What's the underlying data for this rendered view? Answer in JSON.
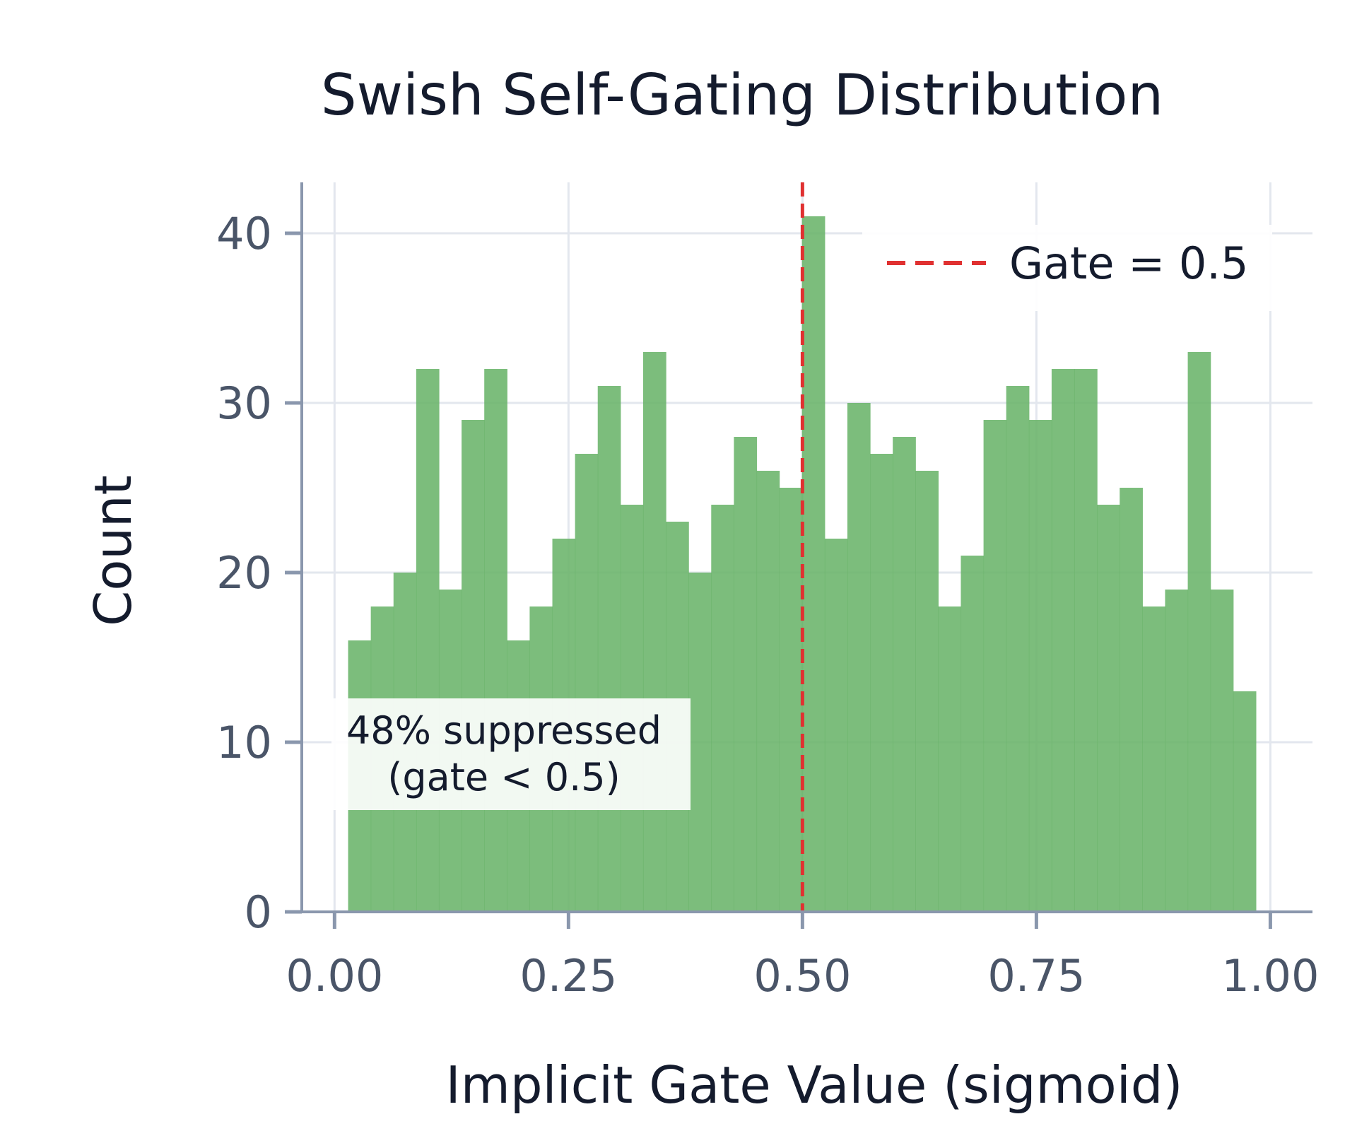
{
  "chart_data": {
    "type": "bar",
    "title": "Swish Self-Gating Distribution",
    "xlabel": "Implicit Gate Value (sigmoid)",
    "ylabel": "Count",
    "xlim": [
      -0.035,
      1.045
    ],
    "ylim": [
      0,
      43
    ],
    "xticks": [
      {
        "value": 0.0,
        "label": "0.00"
      },
      {
        "value": 0.25,
        "label": "0.25"
      },
      {
        "value": 0.5,
        "label": "0.50"
      },
      {
        "value": 0.75,
        "label": "0.75"
      },
      {
        "value": 1.0,
        "label": "1.00"
      }
    ],
    "yticks": [
      {
        "value": 0,
        "label": "0"
      },
      {
        "value": 10,
        "label": "10"
      },
      {
        "value": 20,
        "label": "20"
      },
      {
        "value": 30,
        "label": "30"
      },
      {
        "value": 40,
        "label": "40"
      }
    ],
    "grid": true,
    "bin_start": 0.0145,
    "bin_width": 0.02425,
    "counts": [
      16,
      18,
      20,
      32,
      19,
      29,
      32,
      16,
      18,
      22,
      27,
      31,
      24,
      33,
      23,
      20,
      24,
      28,
      26,
      25,
      41,
      22,
      30,
      27,
      28,
      26,
      18,
      21,
      29,
      31,
      29,
      32,
      32,
      24,
      25,
      18,
      19,
      33,
      19,
      13
    ],
    "bar_color": "#6ab46a",
    "threshold": {
      "x": 0.5,
      "label": "Gate = 0.5",
      "color": "#e03131"
    },
    "legend_position": "top-right",
    "annotation": {
      "line1": "48% suppressed",
      "line2": "(gate < 0.5)"
    }
  }
}
